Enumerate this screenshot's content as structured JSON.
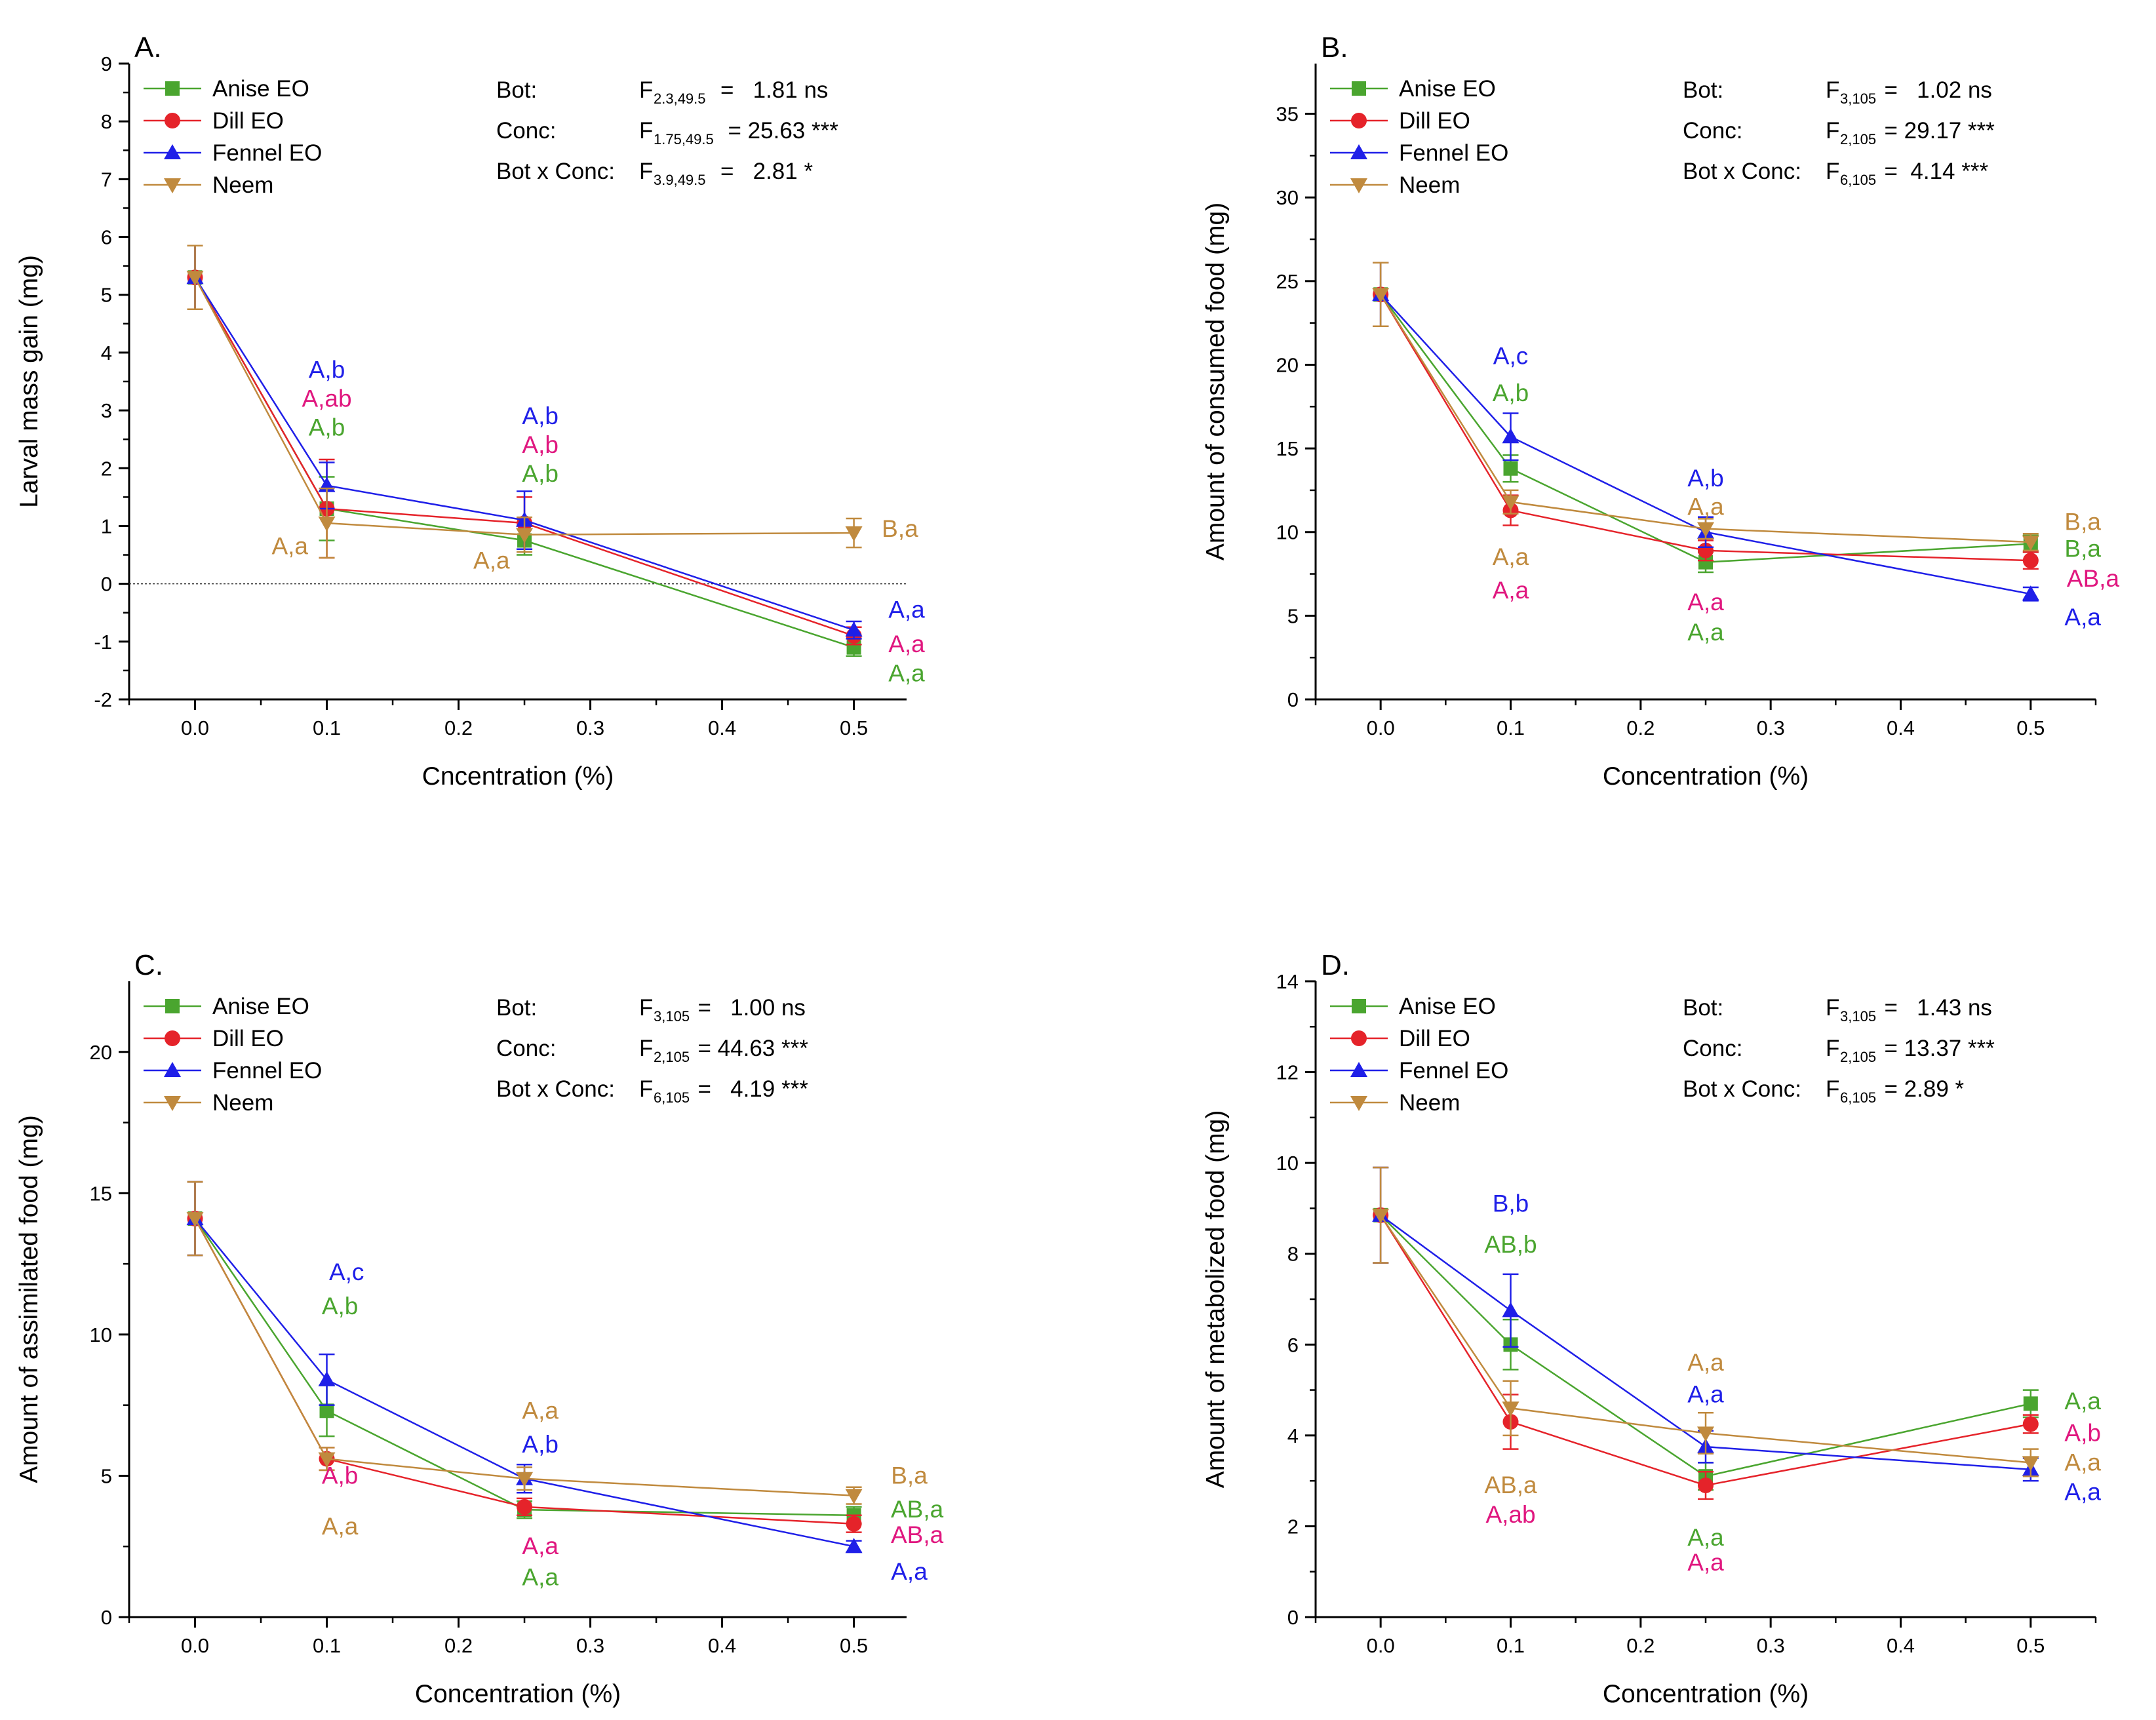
{
  "colors": {
    "Anise EO": "#4aa52f",
    "Dill EO": "#e5232a",
    "Fennel EO": "#1f1fe8",
    "Neem": "#c08a3e",
    "pink": "#e0177f"
  },
  "chart_data": [
    {
      "type": "line",
      "panel_label": "A.",
      "xlabel": "Cncentration (%)",
      "ylabel": "Larval mass gain (mg)",
      "xlim": [
        -0.05,
        0.54
      ],
      "ylim": [
        -2,
        9
      ],
      "xticks": [
        "0.0",
        "0.1",
        "0.2",
        "0.3",
        "0.4",
        "0.5"
      ],
      "yticks": [
        "-2",
        "-1",
        "0",
        "1",
        "2",
        "3",
        "4",
        "5",
        "6",
        "7",
        "8",
        "9"
      ],
      "zero_line": true,
      "legend": [
        "Anise EO",
        "Dill EO",
        "Fennel EO",
        "Neem"
      ],
      "x": [
        0.0,
        0.1,
        0.25,
        0.5
      ],
      "series": [
        {
          "name": "Anise EO",
          "values": [
            5.3,
            1.3,
            0.75,
            -1.1
          ],
          "err": [
            0.55,
            0.55,
            0.25,
            0.15
          ]
        },
        {
          "name": "Dill EO",
          "values": [
            5.3,
            1.3,
            1.05,
            -0.9
          ],
          "err": [
            0.55,
            0.85,
            0.45,
            0.15
          ]
        },
        {
          "name": "Fennel EO",
          "values": [
            5.3,
            1.7,
            1.1,
            -0.8
          ],
          "err": [
            0.55,
            0.4,
            0.5,
            0.15
          ]
        },
        {
          "name": "Neem",
          "values": [
            5.3,
            1.05,
            0.85,
            0.88
          ],
          "err": [
            0.55,
            0.6,
            0.3,
            0.25
          ]
        }
      ],
      "stats": {
        "rows": [
          {
            "label": "Bot:",
            "sub": "2.3,49.5",
            "value": "=   1.81 ns"
          },
          {
            "label": "Conc:",
            "sub": "1.75,49.5",
            "value": "= 25.63 ***"
          },
          {
            "label": "Bot x Conc:",
            "sub": "3.9,49.5",
            "value": "=   2.81 *"
          }
        ]
      },
      "annotations": [
        {
          "text": "A,b",
          "series": "Fennel EO",
          "x": 0.1,
          "y": 3.7
        },
        {
          "text": "A,ab",
          "series": "pink",
          "x": 0.1,
          "y": 3.2
        },
        {
          "text": "A,b",
          "series": "Anise EO",
          "x": 0.1,
          "y": 2.7
        },
        {
          "text": "A,a",
          "series": "Neem",
          "x": 0.072,
          "y": 0.65
        },
        {
          "text": "A,b",
          "series": "Fennel EO",
          "x": 0.262,
          "y": 2.9
        },
        {
          "text": "A,b",
          "series": "pink",
          "x": 0.262,
          "y": 2.4
        },
        {
          "text": "A,b",
          "series": "Anise EO",
          "x": 0.262,
          "y": 1.9
        },
        {
          "text": "A,a",
          "series": "Neem",
          "x": 0.225,
          "y": 0.4
        },
        {
          "text": "B,a",
          "series": "Neem",
          "x": 0.535,
          "y": 0.95
        },
        {
          "text": "A,a",
          "series": "Fennel EO",
          "x": 0.54,
          "y": -0.45
        },
        {
          "text": "A,a",
          "series": "pink",
          "x": 0.54,
          "y": -1.05
        },
        {
          "text": "A,a",
          "series": "Anise EO",
          "x": 0.54,
          "y": -1.55
        }
      ]
    },
    {
      "type": "line",
      "panel_label": "B.",
      "xlabel": "Concentration (%)",
      "ylabel": "Amount of consumed food (mg)",
      "xlim": [
        -0.05,
        0.55
      ],
      "ylim": [
        0,
        38
      ],
      "xticks": [
        "0.0",
        "0.1",
        "0.2",
        "0.3",
        "0.4",
        "0.5"
      ],
      "yticks": [
        "0",
        "5",
        "10",
        "15",
        "20",
        "25",
        "30",
        "35"
      ],
      "zero_line": false,
      "legend": [
        "Anise EO",
        "Dill EO",
        "Fennel EO",
        "Neem"
      ],
      "x": [
        0.0,
        0.1,
        0.25,
        0.5
      ],
      "series": [
        {
          "name": "Anise EO",
          "values": [
            24.2,
            13.8,
            8.2,
            9.3
          ],
          "err": [
            1.9,
            0.8,
            0.6,
            0.5
          ]
        },
        {
          "name": "Dill EO",
          "values": [
            24.2,
            11.3,
            8.9,
            8.3
          ],
          "err": [
            1.9,
            0.9,
            0.6,
            0.5
          ]
        },
        {
          "name": "Fennel EO",
          "values": [
            24.2,
            15.7,
            10.0,
            6.3
          ],
          "err": [
            1.9,
            1.4,
            0.9,
            0.4
          ]
        },
        {
          "name": "Neem",
          "values": [
            24.2,
            11.8,
            10.2,
            9.4
          ],
          "err": [
            1.9,
            0.7,
            0.6,
            0.5
          ]
        }
      ],
      "stats": {
        "rows": [
          {
            "label": "Bot:",
            "sub": "3,105",
            "value": "=   1.02 ns"
          },
          {
            "label": "Conc:",
            "sub": "2,105",
            "value": "= 29.17 ***"
          },
          {
            "label": "Bot x Conc:",
            "sub": "6,105",
            "value": "=  4.14 ***"
          }
        ]
      },
      "annotations": [
        {
          "text": "A,c",
          "series": "Fennel EO",
          "x": 0.1,
          "y": 20.5
        },
        {
          "text": "A,b",
          "series": "Anise EO",
          "x": 0.1,
          "y": 18.3
        },
        {
          "text": "A,a",
          "series": "Neem",
          "x": 0.1,
          "y": 8.5
        },
        {
          "text": "A,a",
          "series": "pink",
          "x": 0.1,
          "y": 6.5
        },
        {
          "text": "A,b",
          "series": "Fennel EO",
          "x": 0.25,
          "y": 13.2
        },
        {
          "text": "A,a",
          "series": "Neem",
          "x": 0.25,
          "y": 11.5
        },
        {
          "text": "A,a",
          "series": "pink",
          "x": 0.25,
          "y": 5.8
        },
        {
          "text": "A,a",
          "series": "Anise EO",
          "x": 0.25,
          "y": 4.0
        },
        {
          "text": "B,a",
          "series": "Neem",
          "x": 0.54,
          "y": 10.6
        },
        {
          "text": "B,a",
          "series": "Anise EO",
          "x": 0.54,
          "y": 9.0
        },
        {
          "text": "AB,a",
          "series": "pink",
          "x": 0.548,
          "y": 7.2
        },
        {
          "text": "A,a",
          "series": "Fennel EO",
          "x": 0.54,
          "y": 4.9
        }
      ]
    },
    {
      "type": "line",
      "panel_label": "C.",
      "xlabel": "Concentration (%)",
      "ylabel": "Amount of assimilated food (mg)",
      "xlim": [
        -0.05,
        0.54
      ],
      "ylim": [
        0,
        22.5
      ],
      "xticks": [
        "0.0",
        "0.1",
        "0.2",
        "0.3",
        "0.4",
        "0.5"
      ],
      "yticks": [
        "0",
        "5",
        "10",
        "15",
        "20"
      ],
      "zero_line": false,
      "legend": [
        "Anise EO",
        "Dill EO",
        "Fennel EO",
        "Neem"
      ],
      "x": [
        0.0,
        0.1,
        0.25,
        0.5
      ],
      "series": [
        {
          "name": "Anise EO",
          "values": [
            14.1,
            7.3,
            3.8,
            3.6
          ],
          "err": [
            1.3,
            0.9,
            0.3,
            0.3
          ]
        },
        {
          "name": "Dill EO",
          "values": [
            14.1,
            5.6,
            3.9,
            3.3
          ],
          "err": [
            1.3,
            0.4,
            0.3,
            0.3
          ]
        },
        {
          "name": "Fennel EO",
          "values": [
            14.1,
            8.4,
            4.9,
            2.5
          ],
          "err": [
            1.3,
            0.9,
            0.5,
            0.2
          ]
        },
        {
          "name": "Neem",
          "values": [
            14.1,
            5.6,
            4.9,
            4.3
          ],
          "err": [
            1.3,
            0.4,
            0.4,
            0.3
          ]
        }
      ],
      "stats": {
        "rows": [
          {
            "label": "Bot:",
            "sub": "3,105",
            "value": "=   1.00 ns"
          },
          {
            "label": "Conc:",
            "sub": "2,105",
            "value": "= 44.63 ***"
          },
          {
            "label": "Bot x Conc:",
            "sub": "6,105",
            "value": "=   4.19 ***"
          }
        ]
      },
      "annotations": [
        {
          "text": "A,c",
          "series": "Fennel EO",
          "x": 0.115,
          "y": 12.2
        },
        {
          "text": "A,b",
          "series": "Anise EO",
          "x": 0.11,
          "y": 11.0
        },
        {
          "text": "A,b",
          "series": "pink",
          "x": 0.11,
          "y": 5.0
        },
        {
          "text": "A,a",
          "series": "Neem",
          "x": 0.11,
          "y": 3.2
        },
        {
          "text": "A,a",
          "series": "Neem",
          "x": 0.262,
          "y": 7.3
        },
        {
          "text": "A,b",
          "series": "Fennel EO",
          "x": 0.262,
          "y": 6.1
        },
        {
          "text": "A,a",
          "series": "pink",
          "x": 0.262,
          "y": 2.5
        },
        {
          "text": "A,a",
          "series": "Anise EO",
          "x": 0.262,
          "y": 1.4
        },
        {
          "text": "B,a",
          "series": "Neem",
          "x": 0.542,
          "y": 5.0
        },
        {
          "text": "AB,a",
          "series": "Anise EO",
          "x": 0.548,
          "y": 3.8
        },
        {
          "text": "AB,a",
          "series": "pink",
          "x": 0.548,
          "y": 2.9
        },
        {
          "text": "A,a",
          "series": "Fennel EO",
          "x": 0.542,
          "y": 1.6
        }
      ]
    },
    {
      "type": "line",
      "panel_label": "D.",
      "xlabel": "Concentration (%)",
      "ylabel": "Amount of metabolized food (mg)",
      "xlim": [
        -0.05,
        0.55
      ],
      "ylim": [
        0,
        14
      ],
      "xticks": [
        "0.0",
        "0.1",
        "0.2",
        "0.3",
        "0.4",
        "0.5"
      ],
      "yticks": [
        "0",
        "2",
        "4",
        "6",
        "8",
        "10",
        "12",
        "14"
      ],
      "zero_line": false,
      "legend": [
        "Anise EO",
        "Dill EO",
        "Fennel EO",
        "Neem"
      ],
      "x": [
        0.0,
        0.1,
        0.25,
        0.5
      ],
      "series": [
        {
          "name": "Anise EO",
          "values": [
            8.85,
            6.0,
            3.1,
            4.7
          ],
          "err": [
            1.05,
            0.55,
            0.3,
            0.3
          ]
        },
        {
          "name": "Dill EO",
          "values": [
            8.85,
            4.3,
            2.9,
            4.25
          ],
          "err": [
            1.05,
            0.6,
            0.3,
            0.2
          ]
        },
        {
          "name": "Fennel EO",
          "values": [
            8.85,
            6.75,
            3.75,
            3.25
          ],
          "err": [
            1.05,
            0.8,
            0.35,
            0.25
          ]
        },
        {
          "name": "Neem",
          "values": [
            8.85,
            4.6,
            4.05,
            3.4
          ],
          "err": [
            1.05,
            0.6,
            0.45,
            0.3
          ]
        }
      ],
      "stats": {
        "rows": [
          {
            "label": "Bot:",
            "sub": "3,105",
            "value": "=   1.43 ns"
          },
          {
            "label": "Conc:",
            "sub": "2,105",
            "value": "= 13.37 ***"
          },
          {
            "label": "Bot x Conc:",
            "sub": "6,105",
            "value": "= 2.89 *"
          }
        ]
      },
      "annotations": [
        {
          "text": "B,b",
          "series": "Fennel EO",
          "x": 0.1,
          "y": 9.1
        },
        {
          "text": "AB,b",
          "series": "Anise EO",
          "x": 0.1,
          "y": 8.2
        },
        {
          "text": "AB,a",
          "series": "Neem",
          "x": 0.1,
          "y": 2.9
        },
        {
          "text": "A,ab",
          "series": "pink",
          "x": 0.1,
          "y": 2.25
        },
        {
          "text": "A,a",
          "series": "Neem",
          "x": 0.25,
          "y": 5.6
        },
        {
          "text": "A,a",
          "series": "Fennel EO",
          "x": 0.25,
          "y": 4.9
        },
        {
          "text": "A,a",
          "series": "Anise EO",
          "x": 0.25,
          "y": 1.75
        },
        {
          "text": "A,a",
          "series": "pink",
          "x": 0.25,
          "y": 1.2
        },
        {
          "text": "A,a",
          "series": "Anise EO",
          "x": 0.54,
          "y": 4.75
        },
        {
          "text": "A,b",
          "series": "pink",
          "x": 0.54,
          "y": 4.05
        },
        {
          "text": "A,a",
          "series": "Neem",
          "x": 0.54,
          "y": 3.4
        },
        {
          "text": "A,a",
          "series": "Fennel EO",
          "x": 0.54,
          "y": 2.75
        }
      ]
    }
  ]
}
